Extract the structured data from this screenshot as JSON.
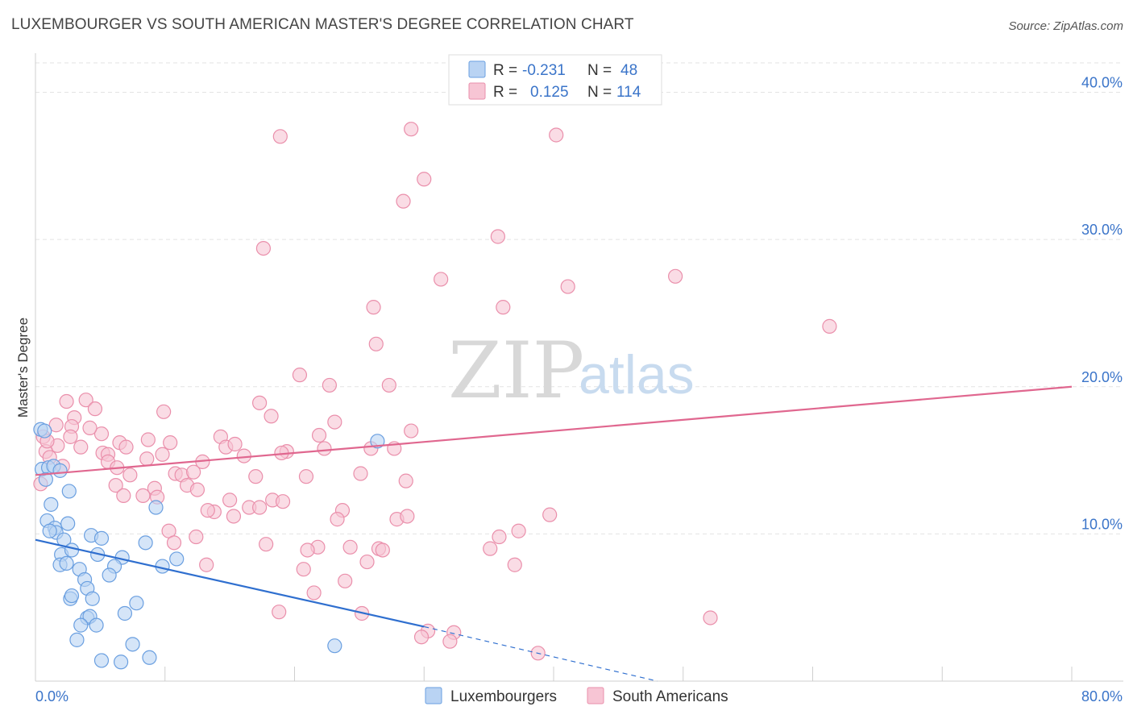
{
  "title": "LUXEMBOURGER VS SOUTH AMERICAN MASTER'S DEGREE CORRELATION CHART",
  "source": "Source: ZipAtlas.com",
  "watermark": {
    "zip": "ZIP",
    "atlas": "atlas"
  },
  "colors": {
    "blue_fill": "#b9d3f3",
    "blue_stroke": "#6a9fe0",
    "blue_line": "#2f6fcf",
    "pink_fill": "#f7c5d4",
    "pink_stroke": "#ea8fab",
    "pink_line": "#e0678f",
    "grid": "#e3e3e3",
    "tick_text": "#3a74c9"
  },
  "legend": {
    "rows": [
      {
        "r_label": "R =",
        "r_value": "-0.231",
        "n_label": "N =",
        "n_value": "48"
      },
      {
        "r_label": "R =",
        "r_value": "0.125",
        "n_label": "N =",
        "n_value": "114"
      }
    ]
  },
  "bottom_legend": [
    "Luxembourgers",
    "South Americans"
  ],
  "chart_data": {
    "type": "scatter",
    "xlabel": "",
    "ylabel": "Master's Degree",
    "xlim": [
      0,
      80
    ],
    "ylim": [
      0,
      42
    ],
    "x_tick_labels": [
      "0.0%",
      "80.0%"
    ],
    "y_ticks": [
      10,
      20,
      30,
      40
    ],
    "y_tick_labels": [
      "10.0%",
      "20.0%",
      "30.0%",
      "40.0%"
    ],
    "grid": true,
    "series": [
      {
        "name": "Luxembourgers",
        "color": "#6a9fe0",
        "trend": {
          "x": [
            0,
            30
          ],
          "y": [
            9.6,
            3.7
          ],
          "dashed_to": [
            48,
            0
          ]
        },
        "points": [
          [
            0.4,
            17.1
          ],
          [
            0.7,
            17.0
          ],
          [
            0.5,
            14.4
          ],
          [
            1.0,
            14.5
          ],
          [
            1.4,
            14.6
          ],
          [
            1.9,
            14.3
          ],
          [
            0.8,
            13.7
          ],
          [
            1.2,
            12.0
          ],
          [
            2.6,
            12.9
          ],
          [
            0.9,
            10.9
          ],
          [
            1.5,
            10.4
          ],
          [
            1.6,
            10.1
          ],
          [
            2.5,
            10.7
          ],
          [
            2.2,
            9.6
          ],
          [
            4.3,
            9.9
          ],
          [
            5.1,
            9.7
          ],
          [
            8.5,
            9.4
          ],
          [
            2.0,
            8.6
          ],
          [
            4.8,
            8.6
          ],
          [
            6.7,
            8.4
          ],
          [
            10.9,
            8.3
          ],
          [
            1.9,
            7.9
          ],
          [
            2.4,
            8.0
          ],
          [
            3.4,
            7.6
          ],
          [
            6.1,
            7.8
          ],
          [
            9.8,
            7.8
          ],
          [
            3.8,
            6.9
          ],
          [
            5.7,
            7.2
          ],
          [
            4.0,
            6.3
          ],
          [
            2.7,
            5.6
          ],
          [
            2.8,
            5.8
          ],
          [
            4.4,
            5.6
          ],
          [
            7.8,
            5.3
          ],
          [
            6.9,
            4.6
          ],
          [
            4.0,
            4.3
          ],
          [
            4.2,
            4.4
          ],
          [
            3.5,
            3.8
          ],
          [
            4.7,
            3.8
          ],
          [
            3.2,
            2.8
          ],
          [
            7.5,
            2.5
          ],
          [
            23.1,
            2.4
          ],
          [
            5.1,
            1.4
          ],
          [
            6.6,
            1.3
          ],
          [
            8.8,
            1.6
          ],
          [
            26.4,
            16.3
          ],
          [
            2.8,
            8.9
          ],
          [
            9.3,
            11.8
          ],
          [
            1.1,
            10.2
          ]
        ]
      },
      {
        "name": "South Americans",
        "color": "#ea8fab",
        "trend": {
          "x": [
            0,
            80
          ],
          "y": [
            14.0,
            20.0
          ]
        },
        "points": [
          [
            18.9,
            37.0
          ],
          [
            29.0,
            37.5
          ],
          [
            40.2,
            37.1
          ],
          [
            30.0,
            34.1
          ],
          [
            28.4,
            32.6
          ],
          [
            35.7,
            30.2
          ],
          [
            17.6,
            29.4
          ],
          [
            31.3,
            27.3
          ],
          [
            49.4,
            27.5
          ],
          [
            41.1,
            26.8
          ],
          [
            26.1,
            25.4
          ],
          [
            36.1,
            25.4
          ],
          [
            61.3,
            24.1
          ],
          [
            26.3,
            22.9
          ],
          [
            20.4,
            20.8
          ],
          [
            22.7,
            20.1
          ],
          [
            27.3,
            20.1
          ],
          [
            2.4,
            19.0
          ],
          [
            3.9,
            19.1
          ],
          [
            9.9,
            18.3
          ],
          [
            17.3,
            18.9
          ],
          [
            18.2,
            18.0
          ],
          [
            3.0,
            17.9
          ],
          [
            4.6,
            18.5
          ],
          [
            1.6,
            17.4
          ],
          [
            2.8,
            17.3
          ],
          [
            5.1,
            16.8
          ],
          [
            0.6,
            16.6
          ],
          [
            2.7,
            16.6
          ],
          [
            6.5,
            16.2
          ],
          [
            8.7,
            16.4
          ],
          [
            10.4,
            16.2
          ],
          [
            14.3,
            16.6
          ],
          [
            14.7,
            15.9
          ],
          [
            15.4,
            16.1
          ],
          [
            21.9,
            16.7
          ],
          [
            23.1,
            17.6
          ],
          [
            29.0,
            17.0
          ],
          [
            1.7,
            16.0
          ],
          [
            0.8,
            15.6
          ],
          [
            5.2,
            15.5
          ],
          [
            5.6,
            15.4
          ],
          [
            8.6,
            15.1
          ],
          [
            9.8,
            15.4
          ],
          [
            12.9,
            14.9
          ],
          [
            16.1,
            15.3
          ],
          [
            19.4,
            15.6
          ],
          [
            22.3,
            15.8
          ],
          [
            25.9,
            15.8
          ],
          [
            27.7,
            15.8
          ],
          [
            2.1,
            14.6
          ],
          [
            5.6,
            14.9
          ],
          [
            6.3,
            14.5
          ],
          [
            10.8,
            14.1
          ],
          [
            11.3,
            14.0
          ],
          [
            12.2,
            14.2
          ],
          [
            17.0,
            13.9
          ],
          [
            20.9,
            13.9
          ],
          [
            25.1,
            14.1
          ],
          [
            28.6,
            13.6
          ],
          [
            0.4,
            13.4
          ],
          [
            6.2,
            13.3
          ],
          [
            7.3,
            14.0
          ],
          [
            9.2,
            13.1
          ],
          [
            11.7,
            13.3
          ],
          [
            12.5,
            13.0
          ],
          [
            6.8,
            12.6
          ],
          [
            8.3,
            12.6
          ],
          [
            9.4,
            12.5
          ],
          [
            15.0,
            12.3
          ],
          [
            18.3,
            12.3
          ],
          [
            19.1,
            12.2
          ],
          [
            16.5,
            11.8
          ],
          [
            17.3,
            11.8
          ],
          [
            13.8,
            11.5
          ],
          [
            13.3,
            11.6
          ],
          [
            15.3,
            11.2
          ],
          [
            23.7,
            11.6
          ],
          [
            23.3,
            11.0
          ],
          [
            27.9,
            11.0
          ],
          [
            28.7,
            11.2
          ],
          [
            39.7,
            11.3
          ],
          [
            10.3,
            10.2
          ],
          [
            12.4,
            9.8
          ],
          [
            37.3,
            10.2
          ],
          [
            35.8,
            9.8
          ],
          [
            17.8,
            9.3
          ],
          [
            10.7,
            9.4
          ],
          [
            21.8,
            9.1
          ],
          [
            21.0,
            8.9
          ],
          [
            24.3,
            9.1
          ],
          [
            26.5,
            9.0
          ],
          [
            26.8,
            8.9
          ],
          [
            35.1,
            9.0
          ],
          [
            13.2,
            7.9
          ],
          [
            20.7,
            7.6
          ],
          [
            25.6,
            8.1
          ],
          [
            37.0,
            7.9
          ],
          [
            23.9,
            6.8
          ],
          [
            21.5,
            6.0
          ],
          [
            18.8,
            4.7
          ],
          [
            25.2,
            4.6
          ],
          [
            52.1,
            4.3
          ],
          [
            30.3,
            3.4
          ],
          [
            32.3,
            3.3
          ],
          [
            29.8,
            3.0
          ],
          [
            32.0,
            2.7
          ],
          [
            38.8,
            1.9
          ],
          [
            1.1,
            15.2
          ],
          [
            3.5,
            15.9
          ],
          [
            7.0,
            15.9
          ],
          [
            0.9,
            16.3
          ],
          [
            4.2,
            17.2
          ],
          [
            19.0,
            15.5
          ]
        ]
      }
    ]
  }
}
